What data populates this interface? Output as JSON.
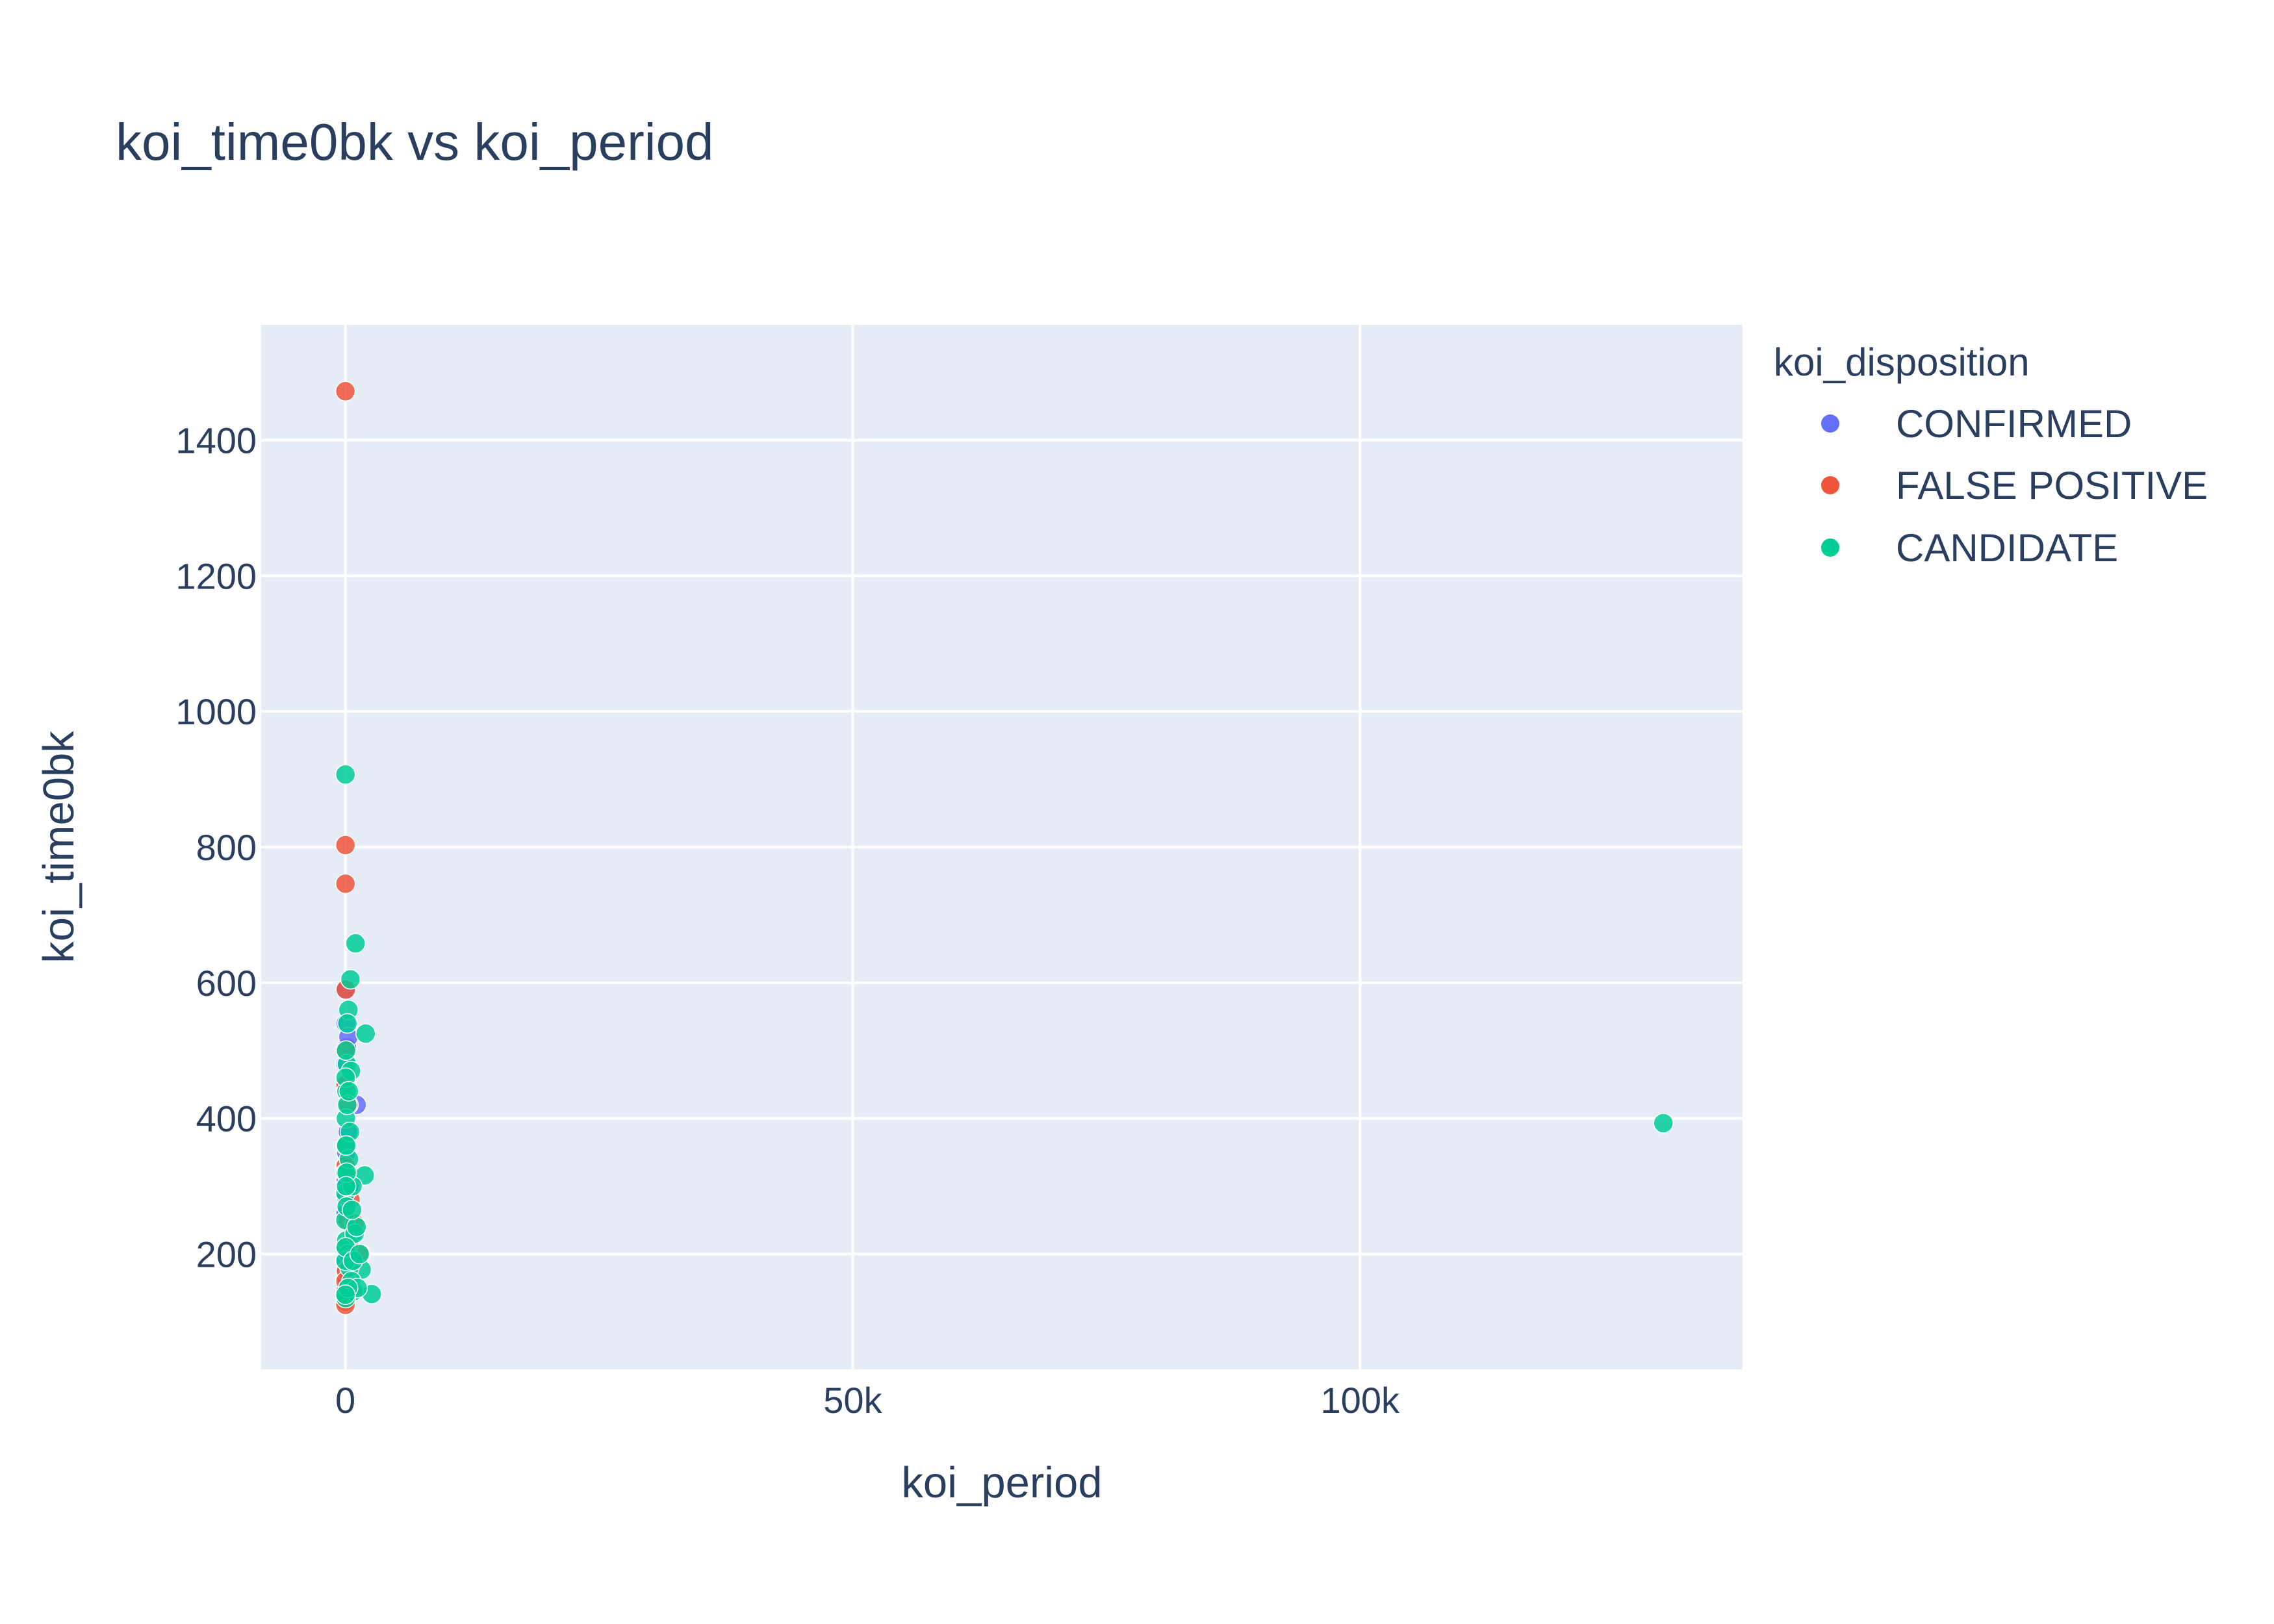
{
  "chart_data": {
    "type": "scatter",
    "title": "koi_time0bk vs koi_period",
    "xlabel": "koi_period",
    "ylabel": "koi_time0bk",
    "xlim": [
      -8300,
      137700
    ],
    "ylim": [
      30,
      1570
    ],
    "x_ticks": [
      {
        "value": 0,
        "label": "0"
      },
      {
        "value": 50000,
        "label": "50k"
      },
      {
        "value": 100000,
        "label": "100k"
      }
    ],
    "y_ticks": [
      {
        "value": 200,
        "label": "200"
      },
      {
        "value": 400,
        "label": "400"
      },
      {
        "value": 600,
        "label": "600"
      },
      {
        "value": 800,
        "label": "800"
      },
      {
        "value": 1000,
        "label": "1000"
      },
      {
        "value": 1200,
        "label": "1200"
      },
      {
        "value": 1400,
        "label": "1400"
      }
    ],
    "grid": true,
    "legend_position": "right",
    "legend_title": "koi_disposition",
    "series": [
      {
        "name": "CONFIRMED",
        "color": "#636efa",
        "points": [
          [
            2.5,
            170
          ],
          [
            5.1,
            135
          ],
          [
            10.3,
            260
          ],
          [
            20.8,
            480
          ],
          [
            35.4,
            540
          ],
          [
            60.2,
            590
          ],
          [
            90,
            350
          ],
          [
            150,
            505
          ],
          [
            250,
            380
          ],
          [
            400,
            300
          ],
          [
            700,
            230
          ],
          [
            1100,
            420
          ],
          [
            15,
            210
          ],
          [
            40,
            310
          ],
          [
            80,
            165
          ],
          [
            120,
            450
          ],
          [
            3.7,
            145
          ],
          [
            8.9,
            190
          ],
          [
            55,
            285
          ],
          [
            300,
            520
          ]
        ]
      },
      {
        "name": "FALSE POSITIVE",
        "color": "#ef553b",
        "points": [
          [
            1.2,
            1472
          ],
          [
            3.1,
            803
          ],
          [
            8.0,
            746
          ],
          [
            2.2,
            130
          ],
          [
            5,
            125
          ],
          [
            15,
            450
          ],
          [
            40,
            590
          ],
          [
            100,
            360
          ],
          [
            200,
            250
          ],
          [
            500,
            280
          ],
          [
            900,
            245
          ],
          [
            1500,
            200
          ],
          [
            60,
            175
          ],
          [
            300,
            420
          ],
          [
            12,
            160
          ],
          [
            25,
            330
          ],
          [
            700,
            150
          ],
          [
            50,
            500
          ],
          [
            20,
            140
          ],
          [
            350,
            215
          ]
        ]
      },
      {
        "name": "CANDIDATE",
        "color": "#00cc96",
        "points": [
          [
            4.5,
            907
          ],
          [
            1000,
            658
          ],
          [
            500,
            605
          ],
          [
            2000,
            525
          ],
          [
            1900,
            316
          ],
          [
            2600,
            141
          ],
          [
            1600,
            177
          ],
          [
            129900,
            393
          ],
          [
            300,
            560
          ],
          [
            200,
            540
          ],
          [
            150,
            480
          ],
          [
            100,
            440
          ],
          [
            50,
            400
          ],
          [
            20,
            360
          ],
          [
            10,
            320
          ],
          [
            5,
            290
          ],
          [
            2,
            250
          ],
          [
            80,
            220
          ],
          [
            250,
            200
          ],
          [
            400,
            180
          ],
          [
            600,
            160
          ],
          [
            800,
            145
          ],
          [
            1200,
            150
          ],
          [
            30,
            135
          ],
          [
            120,
            270
          ],
          [
            350,
            340
          ],
          [
            700,
            300
          ],
          [
            900,
            230
          ],
          [
            60,
            500
          ],
          [
            450,
            380
          ],
          [
            180,
            420
          ],
          [
            15,
            190
          ],
          [
            40,
            210
          ],
          [
            1100,
            240
          ],
          [
            550,
            470
          ],
          [
            750,
            190
          ],
          [
            85,
            360
          ],
          [
            260,
            150
          ],
          [
            25,
            460
          ],
          [
            130,
            320
          ],
          [
            1400,
            200
          ],
          [
            650,
            265
          ],
          [
            330,
            440
          ],
          [
            70,
            300
          ],
          [
            8,
            140
          ]
        ]
      }
    ]
  }
}
